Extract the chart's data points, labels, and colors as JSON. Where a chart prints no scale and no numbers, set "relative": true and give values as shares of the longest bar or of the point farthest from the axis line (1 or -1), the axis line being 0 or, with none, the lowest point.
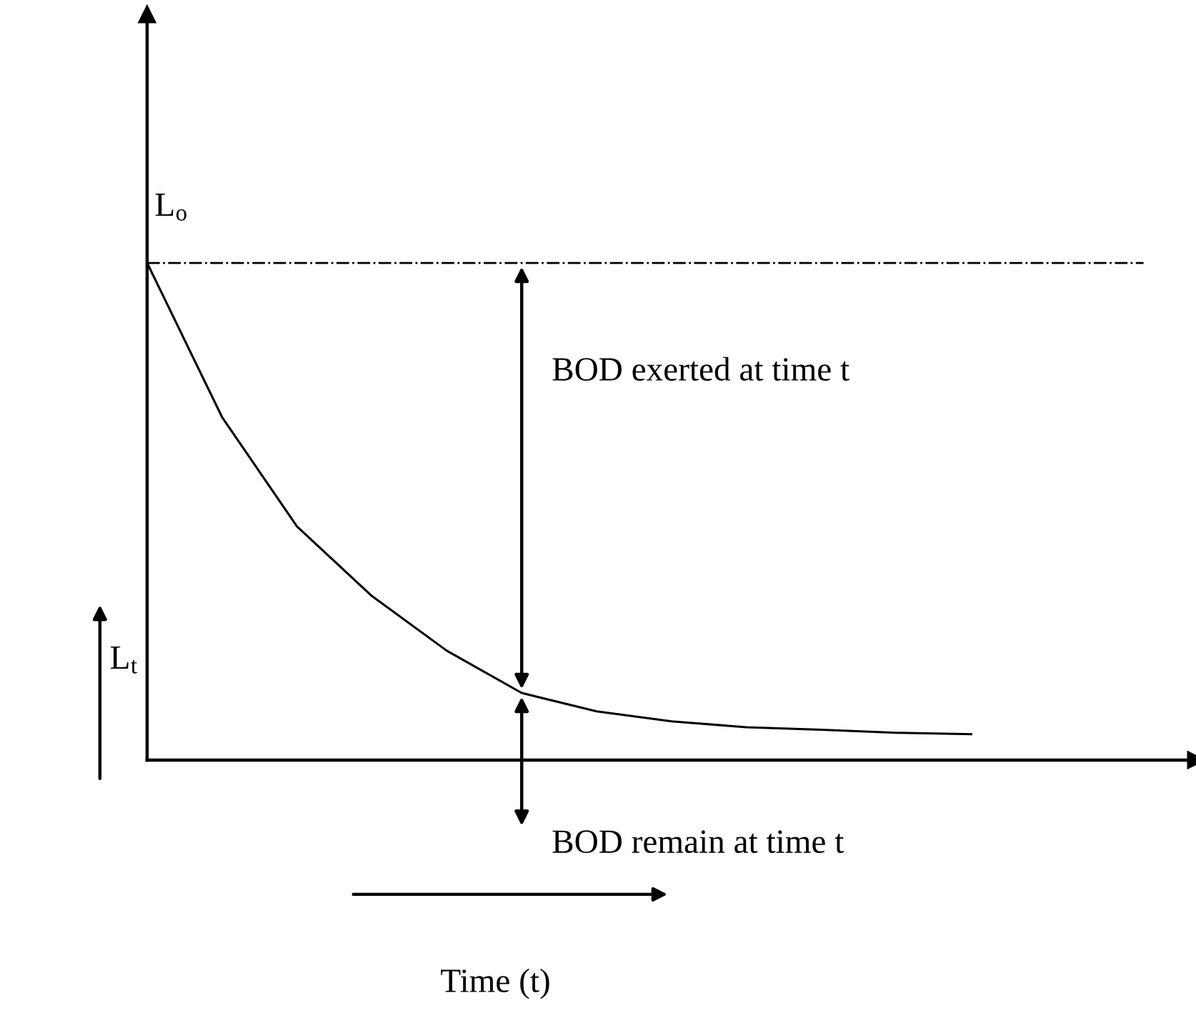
{
  "chart_data": {
    "type": "line",
    "relative": true,
    "ylabel": "L$_{t}$",
    "categories": [
      null,
      null,
      null,
      null,
      null,
      null,
      null,
      null,
      null,
      null,
      null,
      null
    ],
    "values": [
      1.0,
      0.69,
      0.47,
      0.33,
      0.22,
      0.135,
      0.098,
      0.078,
      0.066,
      0.061,
      0.055,
      0.052
    ],
    "color": "#000000",
    "marker": "none",
    "line_style": "solid",
    "grid": false,
    "ref_lines": [
      {
        "axis": "y",
        "value": 1.0,
        "label": "L$_{o}$",
        "color": "#000000",
        "line_style": "dashdot"
      }
    ],
    "annotations": [
      "BOD exerted at time t",
      "BOD remain at time t",
      "Time (t)"
    ]
  }
}
